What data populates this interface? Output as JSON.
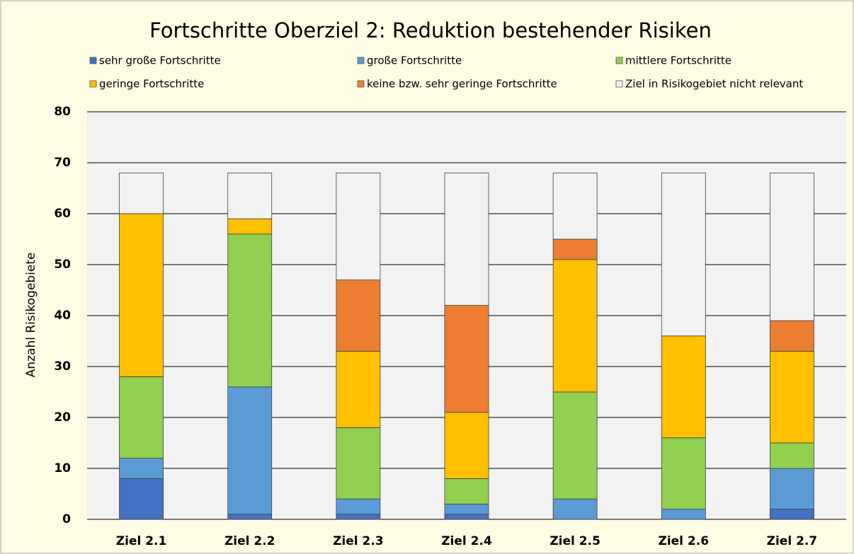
{
  "chart_data": {
    "type": "stacked_bar",
    "title": "Fortschritte Oberziel 2: Reduktion bestehender Risiken",
    "y_label": "Anzahl Risikogebiete",
    "categories": [
      "Ziel 2.1",
      "Ziel 2.2",
      "Ziel 2.3",
      "Ziel 2.4",
      "Ziel 2.5",
      "Ziel 2.6",
      "Ziel 2.7"
    ],
    "series": [
      {
        "name": "sehr große Fortschritte",
        "color": "#4472c4",
        "values": [
          8,
          1,
          1,
          1,
          0,
          0,
          2
        ]
      },
      {
        "name": "große Fortschritte",
        "color": "#5b9bd5",
        "values": [
          4,
          25,
          3,
          2,
          4,
          2,
          8
        ]
      },
      {
        "name": "mittlere Fortschritte",
        "color": "#92d050",
        "values": [
          16,
          30,
          14,
          5,
          21,
          14,
          5
        ]
      },
      {
        "name": "geringe Fortschritte",
        "color": "#ffc000",
        "values": [
          32,
          3,
          15,
          13,
          26,
          20,
          18
        ]
      },
      {
        "name": "keine bzw. sehr geringe Fortschritte",
        "color": "#ed7d31",
        "values": [
          0,
          0,
          14,
          21,
          4,
          0,
          6
        ]
      },
      {
        "name": "Ziel in Risikogebiet nicht relevant",
        "color": "#f2f2f2",
        "values": [
          8,
          9,
          21,
          26,
          13,
          32,
          29
        ]
      }
    ],
    "ylim": [
      0,
      80
    ],
    "yticks": [
      0,
      10,
      20,
      30,
      40,
      50,
      60,
      70,
      80
    ],
    "grid": true
  }
}
